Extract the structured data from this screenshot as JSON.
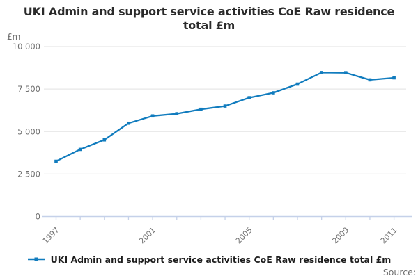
{
  "title": {
    "line1": "UKI Admin and support service activities CoE Raw residence",
    "line2": "total £m"
  },
  "y_axis": {
    "unit_label": "£m",
    "tick_labels": [
      "0",
      "2 500",
      "5 000",
      "7 500",
      "10 000"
    ]
  },
  "legend": {
    "label": "UKI Admin and support service activities CoE Raw residence total £m"
  },
  "source_label": "Source:",
  "colors": {
    "line": "#117cbe",
    "grid": "#e7e7e7",
    "axis": "#c5d1e9",
    "tick_label": "#6f6f6f",
    "title": "#2b2b2b",
    "legend_text": "#1d1d1d",
    "source": "#6f6f6f"
  },
  "chart_data": {
    "type": "line",
    "title": "UKI Admin and support service activities CoE Raw residence total £m",
    "xlabel": "",
    "ylabel": "£m",
    "x": [
      1997,
      1998,
      1999,
      2000,
      2001,
      2002,
      2003,
      2004,
      2005,
      2006,
      2007,
      2008,
      2009,
      2010,
      2011
    ],
    "series": [
      {
        "name": "UKI Admin and support service activities CoE Raw residence total £m",
        "values": [
          3250,
          3950,
          4510,
          5490,
          5920,
          6050,
          6310,
          6500,
          6990,
          7280,
          7790,
          8470,
          8460,
          8040,
          8160
        ]
      }
    ],
    "ylim": [
      0,
      10000
    ],
    "yticks": [
      0,
      2500,
      5000,
      7500,
      10000
    ],
    "ytick_labels": [
      "0",
      "2 500",
      "5 000",
      "7 500",
      "10 000"
    ],
    "xticks_every_year": true,
    "xtick_labels_shown": [
      "1997",
      "2001",
      "2005",
      "2009",
      "2011"
    ],
    "grid": "horizontal",
    "legend_position": "bottom",
    "marker": "square"
  }
}
